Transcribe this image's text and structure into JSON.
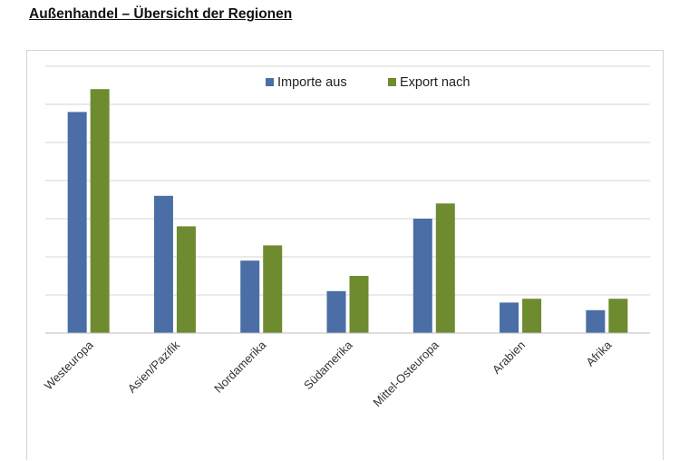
{
  "page": {
    "title": "Außenhandel – Übersicht der Regionen"
  },
  "colors": {
    "imports": "#4a6ea5",
    "exports": "#6e8b30",
    "grid": "#d6d6d6"
  },
  "chart_data": {
    "type": "bar",
    "title": "",
    "xlabel": "",
    "ylabel": "",
    "categories": [
      "Westeuropa",
      "Asien/Pazifik",
      "Nordamerika",
      "Südamerika",
      "Mittel-Osteuropa",
      "Arabien",
      "Afrika"
    ],
    "series": [
      {
        "name": "Importe aus",
        "color": "#4a6ea5",
        "values": [
          5.8,
          3.6,
          1.9,
          1.1,
          3.0,
          0.8,
          0.6
        ]
      },
      {
        "name": "Export nach",
        "color": "#6e8b30",
        "values": [
          6.4,
          2.8,
          2.3,
          1.5,
          3.4,
          0.9,
          0.9
        ]
      }
    ],
    "ylim": [
      0,
      7
    ],
    "y_tick_labels_shown": false,
    "grid": true,
    "legend": "top-center"
  }
}
